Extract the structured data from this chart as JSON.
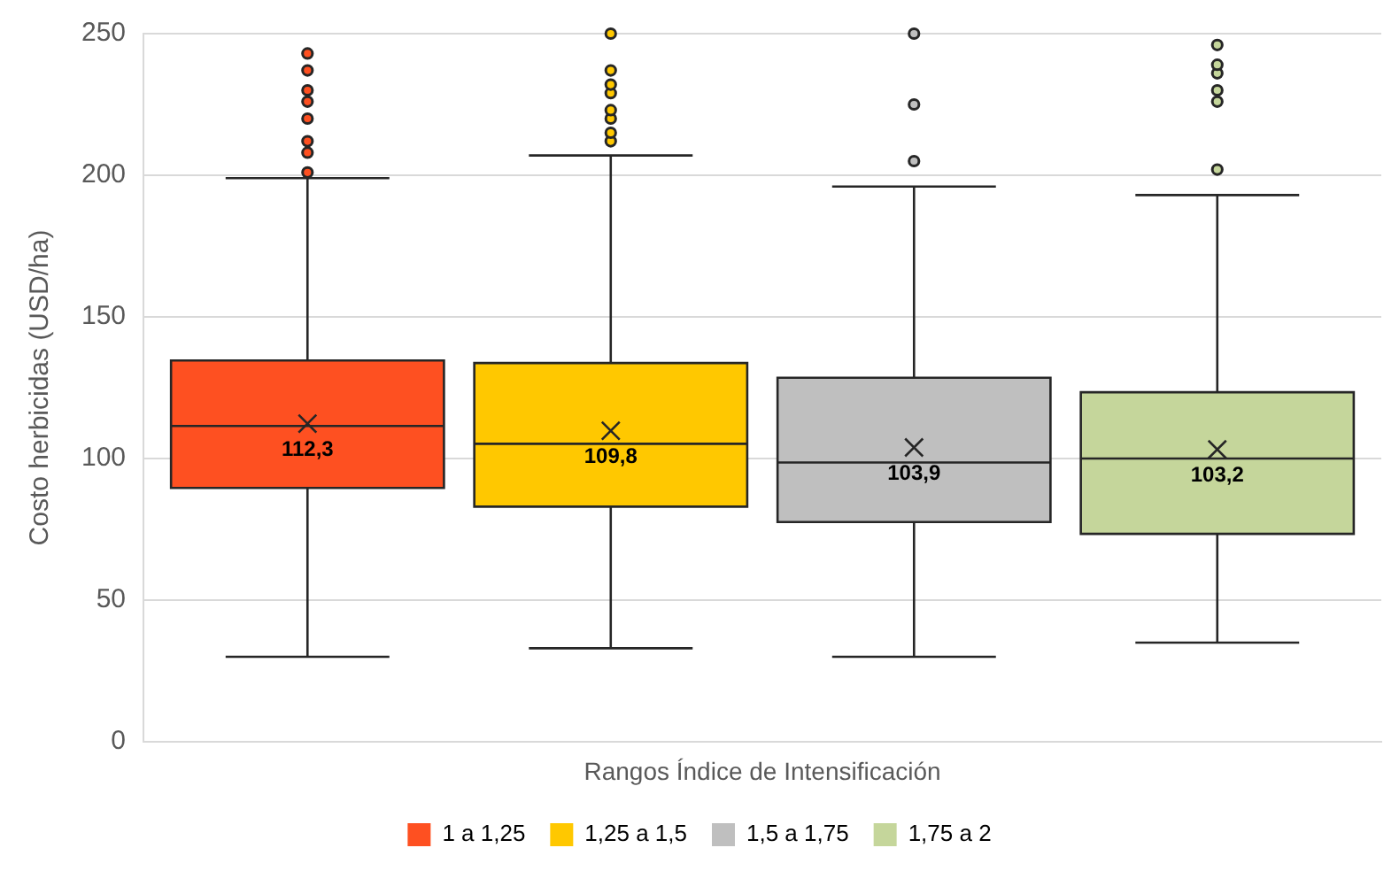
{
  "chart_data": {
    "type": "box",
    "xlabel": "Rangos Índice de Intensificación",
    "ylabel": "Costo herbicidas (USD/ha)",
    "categories": [
      null
    ],
    "series": [
      {
        "name": "1 a 1,25",
        "color": "#fe5021",
        "boxes": [
          {
            "low": 30,
            "q1": 89.6,
            "median": 111.5,
            "q3": 134.6,
            "high": 199,
            "mean": 112.3,
            "outliers": [
              201,
              208,
              212,
              220,
              226,
              230,
              237,
              243
            ]
          }
        ]
      },
      {
        "name": "1,25 a 1,5",
        "color": "#ffc800",
        "boxes": [
          {
            "low": 33,
            "q1": 83,
            "median": 105.2,
            "q3": 133.7,
            "high": 207,
            "mean": 109.8,
            "outliers": [
              212,
              215,
              220,
              223,
              229,
              232,
              237,
              250
            ]
          }
        ]
      },
      {
        "name": "1,5 a 1,75",
        "color": "#bfbfbf",
        "boxes": [
          {
            "low": 30,
            "q1": 77.6,
            "median": 98.6,
            "q3": 128.5,
            "high": 196,
            "mean": 103.9,
            "outliers": [
              205,
              225,
              250
            ]
          }
        ]
      },
      {
        "name": "1,75 a 2",
        "color": "#c5d69b",
        "boxes": [
          {
            "low": 35,
            "q1": 73.4,
            "median": 100,
            "q3": 123.4,
            "high": 193,
            "mean": 103.2,
            "outliers": [
              202,
              226,
              230,
              236,
              239,
              246
            ]
          }
        ]
      }
    ],
    "annotations": [
      "112,3",
      "109,8",
      "103,9",
      "103,2"
    ],
    "ylim": [
      0,
      250
    ],
    "yticks": [
      0,
      50,
      100,
      150,
      200,
      250
    ],
    "grid": "y",
    "legend": "bottom",
    "marker": "circle"
  }
}
